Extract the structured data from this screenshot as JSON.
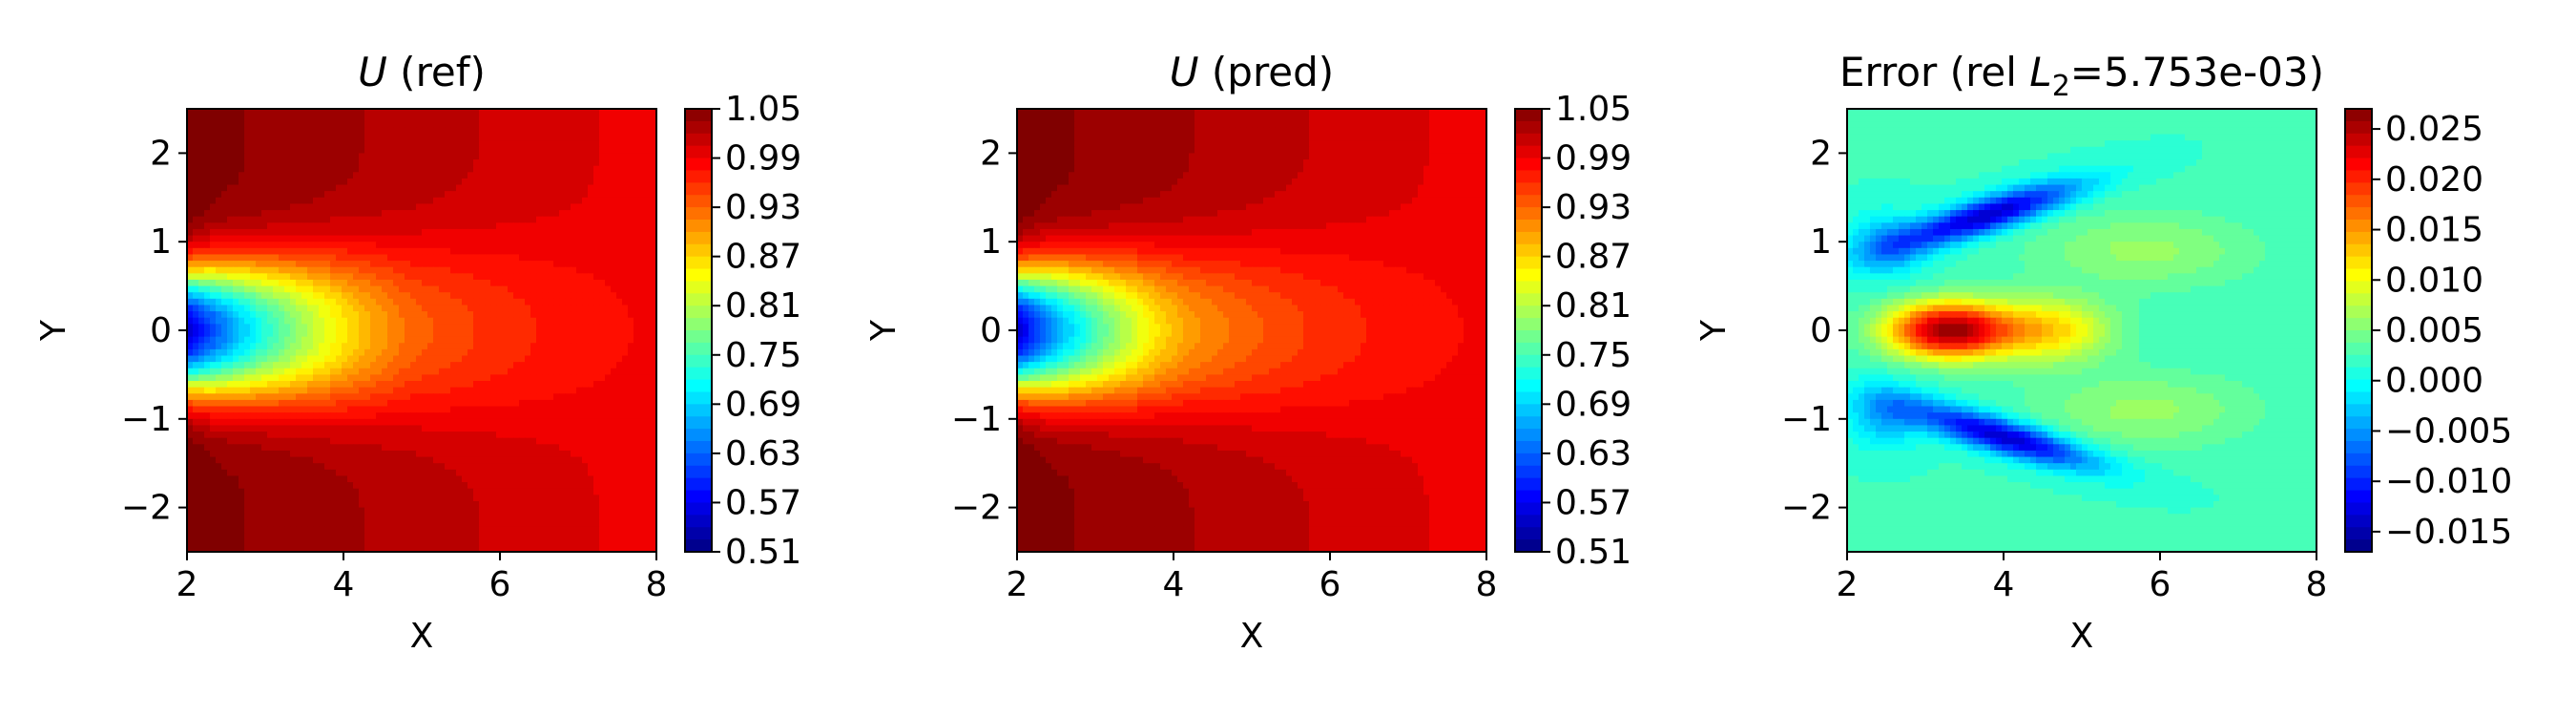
{
  "chart_data": [
    {
      "type": "heatmap",
      "title_symbol": "U",
      "title_suffix": " (ref)",
      "xlabel": "X",
      "ylabel": "Y",
      "xlim": [
        2,
        8
      ],
      "ylim": [
        -2.5,
        2.5
      ],
      "xticks": [
        2,
        4,
        6,
        8
      ],
      "yticks": [
        2,
        1,
        0,
        -1,
        -2
      ],
      "colormap": "jet",
      "colorbar": {
        "min": 0.51,
        "max": 1.05,
        "ticks": [
          "1.05",
          "0.99",
          "0.93",
          "0.87",
          "0.81",
          "0.75",
          "0.69",
          "0.63",
          "0.57",
          "0.51"
        ]
      },
      "field": {
        "kind": "wake",
        "min_value": 0.51,
        "max_value": 1.05,
        "wake_tip_x": 4.9
      }
    },
    {
      "type": "heatmap",
      "title_symbol": "U",
      "title_suffix": " (pred)",
      "xlabel": "X",
      "ylabel": "Y",
      "xlim": [
        2,
        8
      ],
      "ylim": [
        -2.5,
        2.5
      ],
      "xticks": [
        2,
        4,
        6,
        8
      ],
      "yticks": [
        2,
        1,
        0,
        -1,
        -2
      ],
      "colormap": "jet",
      "colorbar": {
        "min": 0.51,
        "max": 1.05,
        "ticks": [
          "1.05",
          "0.99",
          "0.93",
          "0.87",
          "0.81",
          "0.75",
          "0.69",
          "0.63",
          "0.57",
          "0.51"
        ]
      },
      "field": {
        "kind": "wake",
        "min_value": 0.51,
        "max_value": 1.05,
        "wake_tip_x": 4.2
      }
    },
    {
      "type": "heatmap",
      "title_prefix": "Error (rel ",
      "title_symbol": "L",
      "title_subscript": "2",
      "title_suffix": "=5.753e-03)",
      "xlabel": "X",
      "ylabel": "Y",
      "xlim": [
        2,
        8
      ],
      "ylim": [
        -2.5,
        2.5
      ],
      "xticks": [
        2,
        4,
        6,
        8
      ],
      "yticks": [
        2,
        1,
        0,
        -1,
        -2
      ],
      "colormap": "jet",
      "colorbar": {
        "min": -0.017,
        "max": 0.027,
        "ticks": [
          "0.025",
          "0.020",
          "0.015",
          "0.010",
          "0.005",
          "0.000",
          "−0.005",
          "−0.010",
          "−0.015"
        ]
      },
      "field": {
        "kind": "error",
        "background_value": 0.002,
        "peak_value": 0.026,
        "peak_x": 3.3,
        "peak_y": 0.0,
        "trough_value": -0.014,
        "trough_upper": [
          3.8,
          1.3
        ],
        "trough_lower": [
          4.0,
          -1.2
        ]
      }
    }
  ]
}
